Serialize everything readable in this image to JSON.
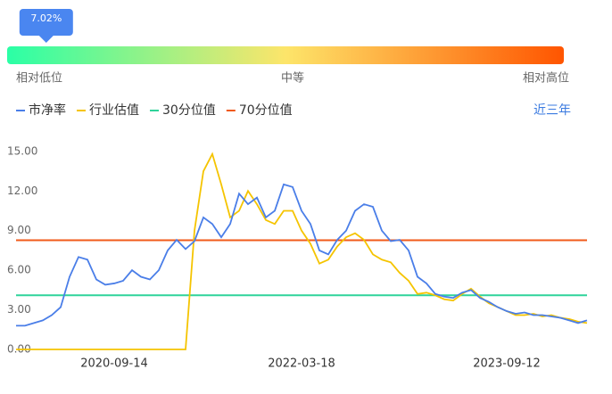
{
  "gauge": {
    "percentile": 7.02,
    "percentile_label": "7.02%",
    "range": [
      0,
      100
    ],
    "labels": [
      "相对低位",
      "中等",
      "相对高位"
    ]
  },
  "period_button": "近三年",
  "chart_data": {
    "type": "line",
    "categories": [
      null,
      null,
      null,
      null,
      null,
      null,
      null,
      null,
      null,
      null,
      null,
      "2020-09-14",
      null,
      null,
      null,
      null,
      null,
      null,
      null,
      null,
      null,
      null,
      null,
      null,
      null,
      null,
      null,
      null,
      null,
      null,
      null,
      null,
      "2022-03-18",
      null,
      null,
      null,
      null,
      null,
      null,
      null,
      null,
      null,
      null,
      null,
      null,
      null,
      null,
      null,
      null,
      null,
      null,
      null,
      null,
      null,
      null,
      "2023-09-12",
      null,
      null,
      null,
      null,
      null,
      null,
      null,
      null,
      null
    ],
    "series": [
      {
        "name": "市净率",
        "color": "#4a7ee8",
        "values": [
          1.8,
          1.8,
          2.0,
          2.2,
          2.6,
          3.2,
          5.5,
          7.0,
          6.8,
          5.3,
          4.9,
          5.0,
          5.2,
          6.0,
          5.5,
          5.3,
          6.0,
          7.5,
          8.3,
          7.6,
          8.2,
          10.0,
          9.5,
          8.5,
          9.5,
          11.8,
          11.0,
          11.5,
          10.0,
          10.5,
          12.5,
          12.3,
          10.5,
          9.5,
          7.5,
          7.2,
          8.3,
          9.0,
          10.5,
          11.0,
          10.8,
          9.0,
          8.2,
          8.3,
          7.5,
          5.5,
          5.0,
          4.2,
          4.0,
          3.9,
          4.3,
          4.5,
          3.9,
          3.6,
          3.2,
          2.9,
          2.7,
          2.8,
          2.6,
          2.6,
          2.5,
          2.4,
          2.2,
          2.0,
          2.2
        ]
      },
      {
        "name": "行业估值",
        "color": "#f5c400",
        "values": [
          0,
          0,
          0,
          0,
          0,
          0,
          0,
          0,
          0,
          0,
          0,
          0,
          0,
          0,
          0,
          0,
          0,
          0,
          0,
          0,
          9.0,
          13.5,
          14.8,
          12.5,
          10.0,
          10.5,
          12.0,
          11.0,
          9.8,
          9.5,
          10.5,
          10.5,
          9.0,
          8.0,
          6.5,
          6.8,
          7.8,
          8.5,
          8.8,
          8.3,
          7.2,
          6.8,
          6.6,
          5.8,
          5.2,
          4.2,
          4.3,
          4.1,
          3.8,
          3.7,
          4.2,
          4.6,
          4.0,
          3.5,
          3.2,
          2.9,
          2.6,
          2.6,
          2.7,
          2.5,
          2.6,
          2.4,
          2.3,
          2.1,
          2.0
        ]
      }
    ],
    "hlines": [
      {
        "name": "30分位值",
        "color": "#2fd39a",
        "value": 4.1
      },
      {
        "name": "70分位值",
        "color": "#f05a1a",
        "value": 8.27
      }
    ],
    "ylim": [
      0,
      16
    ],
    "yticks": [
      {
        "value": 0,
        "label": "0.00"
      },
      {
        "value": 3,
        "label": "3.00"
      },
      {
        "value": 6,
        "label": "6.00"
      },
      {
        "value": 9,
        "label": "9.00"
      },
      {
        "value": 12,
        "label": "12.00"
      },
      {
        "value": 15,
        "label": "15.00"
      }
    ],
    "grid": false
  }
}
